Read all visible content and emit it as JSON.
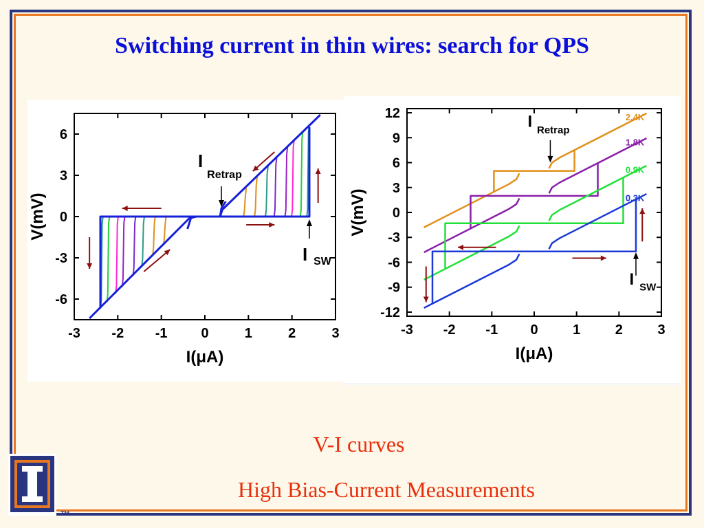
{
  "slide": {
    "title": "Switching current in thin wires: search for QPS",
    "caption_1": "V-I curves",
    "caption_2": "High Bias-Current Measurements",
    "logo_mark": "TM",
    "colors": {
      "title": "#0b10d8",
      "caption": "#e8300c",
      "frame_outer": "#2a3580",
      "frame_inner": "#e87722",
      "background": "#fdf8ea"
    }
  },
  "chart_data": [
    {
      "type": "line",
      "xlabel": "I(μA)",
      "ylabel": "V(mV)",
      "xlim": [
        -3,
        3
      ],
      "ylim": [
        -7.5,
        7.5
      ],
      "xticks": [
        "-3",
        "-2",
        "-1",
        "0",
        "1",
        "2",
        "3"
      ],
      "yticks": [
        "6",
        "3",
        "0",
        "-3",
        "-6"
      ],
      "annotations": {
        "retrap_label": "I",
        "retrap_sub": "Retrap",
        "switch_label": "I",
        "switch_sub": "SW"
      },
      "switch_current_uA": [
        -2.4,
        -2.25,
        -2.05,
        -1.9,
        -1.65,
        -1.45,
        -1.2,
        -0.95
      ],
      "series": [
        {
          "color": "#1620d8",
          "points": [
            [
              -2.65,
              -7.4
            ],
            [
              -0.35,
              -0.1
            ],
            [
              -0.3,
              0
            ],
            [
              0.35,
              0
            ],
            [
              0.4,
              0.5
            ],
            [
              2.65,
              7.4
            ]
          ]
        },
        {
          "color": "#1620d8",
          "points": [
            [
              -2.4,
              -6.6
            ],
            [
              -2.4,
              0
            ],
            [
              2.4,
              0
            ],
            [
              2.4,
              6.5
            ]
          ]
        },
        {
          "color": "#1620d8",
          "points": [
            [
              -0.4,
              -0.9
            ],
            [
              -0.32,
              -0.1
            ],
            [
              -0.2,
              0
            ]
          ]
        },
        {
          "color": "#1620d8",
          "points": [
            [
              0.35,
              0
            ],
            [
              0.38,
              0.6
            ],
            [
              0.48,
              1.1
            ]
          ]
        }
      ]
    },
    {
      "type": "line",
      "xlabel": "I(μA)",
      "ylabel": "V(mV)",
      "xlim": [
        -3,
        3
      ],
      "ylim": [
        -12.5,
        12.5
      ],
      "xticks": [
        "-3",
        "-2",
        "-1",
        "0",
        "1",
        "2",
        "3"
      ],
      "yticks": [
        "12",
        "9",
        "6",
        "3",
        "0",
        "-3",
        "-6",
        "-9",
        "-12"
      ],
      "annotations": {
        "retrap_label": "I",
        "retrap_sub": "Retrap",
        "switch_label": "I",
        "switch_sub": "SW"
      },
      "series": [
        {
          "name": "2.4K",
          "color": "#e0901a",
          "offset_mV": 5,
          "isw_uA": 0.95
        },
        {
          "name": "1.8K",
          "color": "#8a1fa8",
          "offset_mV": 2,
          "isw_uA": 1.5
        },
        {
          "name": "0.9K",
          "color": "#22e03a",
          "offset_mV": -1.3,
          "isw_uA": 2.1
        },
        {
          "name": "0.3K",
          "color": "#1a3ad8",
          "offset_mV": -4.7,
          "isw_uA": 2.4
        }
      ]
    }
  ]
}
